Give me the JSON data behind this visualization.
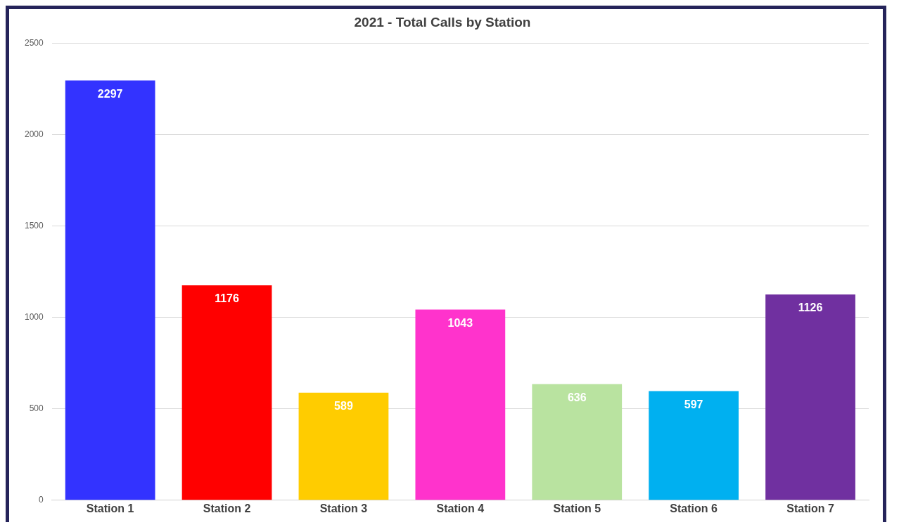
{
  "chart_data": {
    "type": "bar",
    "title": "2021 - Total Calls by Station",
    "categories": [
      "Station 1",
      "Station 2",
      "Station 3",
      "Station 4",
      "Station 5",
      "Station 6",
      "Station 7"
    ],
    "values": [
      2297,
      1176,
      589,
      1043,
      636,
      597,
      1126
    ],
    "colors": [
      "#3333ff",
      "#ff0000",
      "#ffcc00",
      "#ff33cc",
      "#b9e3a0",
      "#00b0f0",
      "#7030a0"
    ],
    "ylim": [
      0,
      2500
    ],
    "yticks": [
      0,
      500,
      1000,
      1500,
      2000,
      2500
    ],
    "grid": "y",
    "legend": false,
    "data_labels": true
  }
}
